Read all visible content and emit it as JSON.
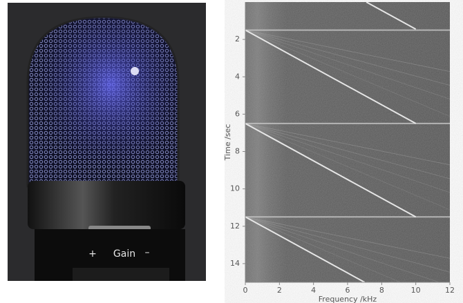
{
  "photo": {
    "labels": [
      "+",
      "Gain",
      "–"
    ]
  },
  "chart_data": {
    "type": "spectrogram",
    "xlabel": "Frequency /kHz",
    "ylabel": "Time /sec",
    "xlim": [
      0,
      12
    ],
    "ylim": [
      0,
      15
    ],
    "y_inverted": true,
    "xticks": [
      0,
      2,
      4,
      6,
      8,
      10,
      12
    ],
    "yticks": [
      2,
      4,
      6,
      8,
      10,
      12,
      14
    ],
    "clicks": [
      1.5,
      6.5,
      11.5
    ],
    "chirps": [
      {
        "start_time": 0,
        "start_freq": 7.1,
        "end_time": 1.45,
        "end_freq": 10
      },
      {
        "start_time": 1.5,
        "start_freq": 0,
        "end_time": 6.5,
        "end_freq": 10
      },
      {
        "start_time": 6.5,
        "start_freq": 0,
        "end_time": 11.5,
        "end_freq": 10
      },
      {
        "start_time": 11.5,
        "start_freq": 0,
        "end_time": 15,
        "end_freq": 7
      }
    ]
  }
}
